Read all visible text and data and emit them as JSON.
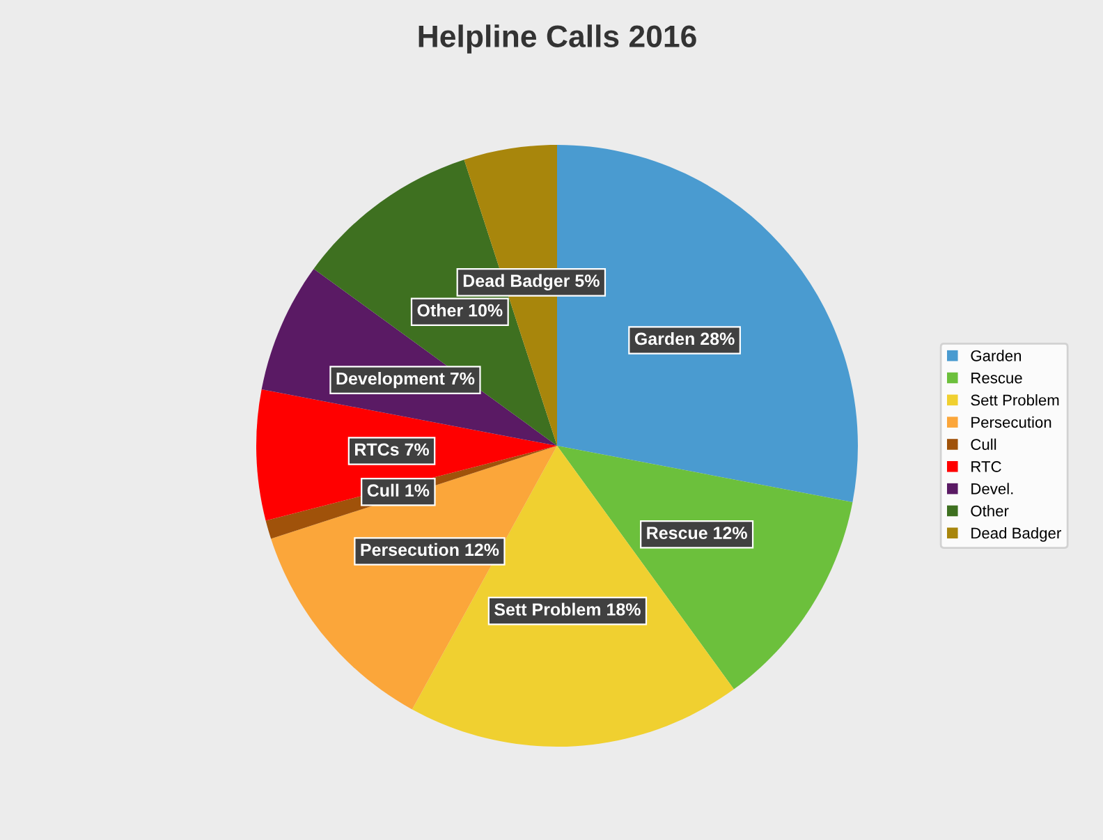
{
  "chart_data": {
    "type": "pie",
    "title": "Helpline Calls 2016",
    "categories": [
      "Garden",
      "Rescue",
      "Sett Problem",
      "Persecution",
      "Cull",
      "RTC",
      "Devel.",
      "Other",
      "Dead Badger"
    ],
    "values": [
      28,
      12,
      18,
      12,
      1,
      7,
      7,
      10,
      5
    ],
    "colors": [
      "#4a9bd0",
      "#6cc03c",
      "#f0d030",
      "#fba63a",
      "#a0520a",
      "#ff0000",
      "#5a1a64",
      "#3e7020",
      "#a8860c"
    ],
    "value_labels": [
      "Garden 28%",
      "Rescue 12%",
      "Sett Problem 18%",
      "Persecution 12%",
      "Cull 1%",
      "RTCs 7%",
      "Development 7%",
      "Other 10%",
      "Dead Badger 5%"
    ],
    "legend": "right"
  }
}
